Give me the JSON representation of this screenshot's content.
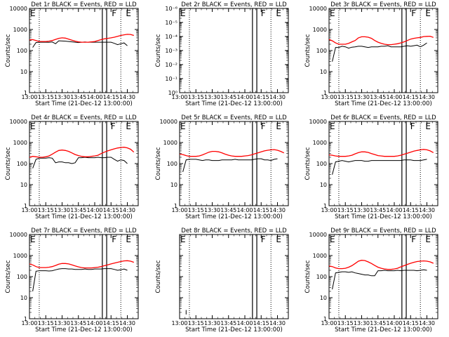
{
  "x_ticks": [
    "13:00",
    "13:15",
    "13:30",
    "13:45",
    "14:00",
    "14:15",
    "14:30"
  ],
  "xlabel": "Start Time (21-Dec-12 13:00:00)",
  "ylabel": "Counts/sec",
  "colors": {
    "events": "#000000",
    "lld": "#ff0000"
  },
  "chart_data": [
    {
      "type": "line",
      "title": "Det 1r BLACK = Events, RED = LLD",
      "x": [
        "13:00",
        "13:03",
        "13:06",
        "13:09",
        "13:12",
        "13:15",
        "13:18",
        "13:21",
        "13:24",
        "13:27",
        "13:30",
        "13:33",
        "13:36",
        "13:39",
        "13:42",
        "13:45",
        "13:48",
        "13:51",
        "13:54",
        "13:57",
        "14:00",
        "14:03",
        "14:06",
        "14:09",
        "14:12",
        "14:15",
        "14:18",
        "14:21",
        "14:24",
        "14:27",
        "14:30",
        "14:33",
        "14:36"
      ],
      "y_ticks": [
        "1",
        "10",
        "100",
        "1000",
        "10000"
      ],
      "ylim": [
        1,
        10000
      ],
      "log": true,
      "markers": [
        {
          "x": "13:00",
          "label": "E"
        },
        {
          "x": "14:15",
          "label": "F"
        },
        {
          "x": "14:28",
          "label": "E"
        }
      ],
      "dotted_x": [
        "13:09",
        "14:24"
      ],
      "gap": [
        "14:07",
        "14:11"
      ],
      "series": [
        {
          "color": "events",
          "values": [
            null,
            140,
            240,
            250,
            250,
            250,
            245,
            255,
            210,
            290,
            285,
            280,
            270,
            260,
            250,
            240,
            250,
            255,
            250,
            250,
            250,
            250,
            250,
            250,
            250,
            250,
            220,
            190,
            210,
            230,
            170,
            null,
            null
          ]
        },
        {
          "color": "lld",
          "values": [
            320,
            330,
            300,
            270,
            270,
            270,
            280,
            300,
            340,
            380,
            400,
            390,
            350,
            310,
            280,
            260,
            250,
            250,
            250,
            260,
            270,
            300,
            330,
            360,
            380,
            400,
            430,
            470,
            520,
            560,
            590,
            580,
            520
          ]
        }
      ]
    },
    {
      "type": "line",
      "title": "Det 2r BLACK = Events, RED = LLD",
      "x": [],
      "y_ticks": [
        "10⁰",
        "10⁻¹",
        "10⁻²",
        "10⁻³",
        "10⁻⁴",
        "10⁻⁵",
        "10⁻⁶"
      ],
      "ylim": [
        1e-06,
        1
      ],
      "log": true,
      "markers": [
        {
          "x": "13:00",
          "label": "E"
        },
        {
          "x": "14:14",
          "label": "F"
        },
        {
          "x": "14:28",
          "label": "E"
        }
      ],
      "dotted_x": [
        "13:09",
        "14:24"
      ],
      "gap": [
        "14:07",
        "14:11"
      ],
      "series": []
    },
    {
      "type": "line",
      "title": "Det 3r BLACK = Events, RED = LLD",
      "x": [
        "13:00",
        "13:03",
        "13:06",
        "13:09",
        "13:12",
        "13:15",
        "13:18",
        "13:21",
        "13:24",
        "13:27",
        "13:30",
        "13:33",
        "13:36",
        "13:39",
        "13:42",
        "13:45",
        "13:48",
        "13:51",
        "13:54",
        "13:57",
        "14:00",
        "14:03",
        "14:06",
        "14:09",
        "14:12",
        "14:15",
        "14:18",
        "14:21",
        "14:24",
        "14:27",
        "14:30",
        "14:33",
        "14:36"
      ],
      "y_ticks": [
        "1",
        "10",
        "100",
        "1000",
        "10000"
      ],
      "ylim": [
        1,
        10000
      ],
      "log": true,
      "markers": [
        {
          "x": "13:00",
          "label": "E"
        },
        {
          "x": "14:15",
          "label": "F"
        },
        {
          "x": "14:28",
          "label": "E"
        }
      ],
      "dotted_x": [
        "13:09",
        "14:24"
      ],
      "gap": [
        "14:07",
        "14:11"
      ],
      "series": [
        {
          "color": "events",
          "values": [
            null,
            30,
            140,
            140,
            160,
            150,
            130,
            145,
            150,
            160,
            160,
            150,
            140,
            150,
            150,
            150,
            160,
            160,
            170,
            150,
            150,
            150,
            150,
            160,
            170,
            160,
            170,
            180,
            150,
            180,
            230,
            null,
            null
          ]
        },
        {
          "color": "lld",
          "values": [
            340,
            290,
            230,
            200,
            200,
            200,
            220,
            260,
            300,
            400,
            450,
            450,
            430,
            380,
            300,
            250,
            220,
            200,
            190,
            190,
            200,
            210,
            230,
            260,
            300,
            350,
            380,
            400,
            420,
            460,
            470,
            480,
            420
          ]
        }
      ]
    },
    {
      "type": "line",
      "title": "Det 4r BLACK = Events, RED = LLD",
      "x": [
        "13:00",
        "13:03",
        "13:06",
        "13:09",
        "13:12",
        "13:15",
        "13:18",
        "13:21",
        "13:24",
        "13:27",
        "13:30",
        "13:33",
        "13:36",
        "13:39",
        "13:42",
        "13:45",
        "13:48",
        "13:51",
        "13:54",
        "13:57",
        "14:00",
        "14:03",
        "14:06",
        "14:09",
        "14:12",
        "14:15",
        "14:18",
        "14:21",
        "14:24",
        "14:27",
        "14:30",
        "14:33",
        "14:36"
      ],
      "y_ticks": [
        "1",
        "10",
        "100",
        "1000",
        "10000"
      ],
      "ylim": [
        1,
        10000
      ],
      "log": true,
      "markers": [
        {
          "x": "13:00",
          "label": "E"
        },
        {
          "x": "14:14",
          "label": "F"
        },
        {
          "x": "14:28",
          "label": "E"
        }
      ],
      "dotted_x": [
        "13:09",
        "14:24"
      ],
      "gap": [
        "14:07",
        "14:11"
      ],
      "series": [
        {
          "color": "events",
          "values": [
            null,
            60,
            160,
            180,
            180,
            180,
            190,
            180,
            110,
            120,
            120,
            110,
            110,
            100,
            110,
            190,
            190,
            200,
            190,
            190,
            190,
            200,
            190,
            190,
            200,
            200,
            160,
            130,
            150,
            140,
            100,
            null,
            null
          ]
        },
        {
          "color": "lld",
          "values": [
            200,
            220,
            210,
            200,
            200,
            210,
            230,
            280,
            350,
            420,
            440,
            420,
            380,
            320,
            270,
            240,
            220,
            210,
            210,
            220,
            230,
            250,
            300,
            350,
            400,
            450,
            500,
            550,
            580,
            600,
            560,
            480,
            350
          ]
        }
      ]
    },
    {
      "type": "line",
      "title": "Det 5r BLACK = Events, RED = LLD",
      "x": [
        "13:00",
        "13:03",
        "13:06",
        "13:09",
        "13:12",
        "13:15",
        "13:18",
        "13:21",
        "13:24",
        "13:27",
        "13:30",
        "13:33",
        "13:36",
        "13:39",
        "13:42",
        "13:45",
        "13:48",
        "13:51",
        "13:54",
        "13:57",
        "14:00",
        "14:03",
        "14:06",
        "14:09",
        "14:12",
        "14:15",
        "14:18",
        "14:21",
        "14:24",
        "14:27",
        "14:30",
        "14:33",
        "14:36"
      ],
      "y_ticks": [
        "1",
        "10",
        "100",
        "1000",
        "10000"
      ],
      "ylim": [
        1,
        10000
      ],
      "log": true,
      "markers": [
        {
          "x": "13:00",
          "label": "E"
        },
        {
          "x": "14:14",
          "label": "F"
        },
        {
          "x": "14:28",
          "label": "E"
        }
      ],
      "dotted_x": [
        "13:09",
        "14:24"
      ],
      "gap": [
        "14:07",
        "14:11"
      ],
      "series": [
        {
          "color": "events",
          "values": [
            null,
            40,
            150,
            160,
            160,
            160,
            150,
            140,
            150,
            150,
            140,
            140,
            140,
            150,
            150,
            150,
            150,
            160,
            150,
            150,
            150,
            150,
            150,
            160,
            170,
            170,
            150,
            150,
            140,
            160,
            170,
            null,
            null
          ]
        },
        {
          "color": "lld",
          "values": [
            280,
            270,
            240,
            220,
            220,
            220,
            230,
            260,
            300,
            350,
            380,
            380,
            360,
            320,
            280,
            250,
            230,
            220,
            220,
            220,
            230,
            240,
            260,
            290,
            320,
            360,
            400,
            430,
            450,
            460,
            430,
            380,
            320
          ]
        }
      ]
    },
    {
      "type": "line",
      "title": "Det 6r BLACK = Events, RED = LLD",
      "x": [
        "13:00",
        "13:03",
        "13:06",
        "13:09",
        "13:12",
        "13:15",
        "13:18",
        "13:21",
        "13:24",
        "13:27",
        "13:30",
        "13:33",
        "13:36",
        "13:39",
        "13:42",
        "13:45",
        "13:48",
        "13:51",
        "13:54",
        "13:57",
        "14:00",
        "14:03",
        "14:06",
        "14:09",
        "14:12",
        "14:15",
        "14:18",
        "14:21",
        "14:24",
        "14:27",
        "14:30",
        "14:33",
        "14:36"
      ],
      "y_ticks": [
        "1",
        "10",
        "100",
        "1000",
        "10000"
      ],
      "ylim": [
        1,
        10000
      ],
      "log": true,
      "markers": [
        {
          "x": "13:00",
          "label": "E"
        },
        {
          "x": "14:14",
          "label": "F"
        },
        {
          "x": "14:28",
          "label": "E"
        }
      ],
      "dotted_x": [
        "13:09",
        "14:24"
      ],
      "gap": [
        "14:07",
        "14:11"
      ],
      "series": [
        {
          "color": "events",
          "values": [
            null,
            30,
            120,
            130,
            140,
            130,
            120,
            130,
            140,
            140,
            140,
            130,
            130,
            140,
            140,
            140,
            140,
            140,
            140,
            140,
            140,
            140,
            140,
            150,
            150,
            150,
            140,
            140,
            140,
            150,
            160,
            null,
            null
          ]
        },
        {
          "color": "lld",
          "values": [
            260,
            250,
            230,
            220,
            220,
            220,
            230,
            250,
            290,
            330,
            360,
            360,
            340,
            300,
            270,
            240,
            230,
            220,
            220,
            220,
            220,
            230,
            250,
            280,
            310,
            350,
            390,
            420,
            450,
            470,
            450,
            400,
            330
          ]
        }
      ]
    },
    {
      "type": "line",
      "title": "Det 7r BLACK = Events, RED = LLD",
      "x": [
        "13:00",
        "13:03",
        "13:06",
        "13:09",
        "13:12",
        "13:15",
        "13:18",
        "13:21",
        "13:24",
        "13:27",
        "13:30",
        "13:33",
        "13:36",
        "13:39",
        "13:42",
        "13:45",
        "13:48",
        "13:51",
        "13:54",
        "13:57",
        "14:00",
        "14:03",
        "14:06",
        "14:09",
        "14:12",
        "14:15",
        "14:18",
        "14:21",
        "14:24",
        "14:27",
        "14:30",
        "14:33",
        "14:36"
      ],
      "y_ticks": [
        "1",
        "10",
        "100",
        "1000",
        "10000"
      ],
      "ylim": [
        1,
        10000
      ],
      "log": true,
      "markers": [
        {
          "x": "13:00",
          "label": "E"
        },
        {
          "x": "14:15",
          "label": "F"
        },
        {
          "x": "14:28",
          "label": "E"
        }
      ],
      "dotted_x": [
        "13:09",
        "14:24"
      ],
      "gap": [
        "14:07",
        "14:11"
      ],
      "series": [
        {
          "color": "events",
          "values": [
            null,
            20,
            180,
            190,
            190,
            190,
            185,
            190,
            210,
            230,
            240,
            240,
            230,
            230,
            220,
            220,
            220,
            230,
            220,
            220,
            230,
            230,
            230,
            240,
            240,
            240,
            220,
            200,
            210,
            230,
            200,
            null,
            null
          ]
        },
        {
          "color": "lld",
          "values": [
            400,
            360,
            300,
            270,
            270,
            270,
            280,
            300,
            340,
            390,
            420,
            420,
            400,
            360,
            320,
            290,
            270,
            260,
            260,
            260,
            270,
            280,
            300,
            330,
            360,
            400,
            440,
            480,
            520,
            560,
            570,
            540,
            480
          ]
        }
      ]
    },
    {
      "type": "line",
      "title": "Det 8r BLACK = Events, RED = LLD",
      "x": [
        "13:06",
        "13:06"
      ],
      "y_ticks": [],
      "ylim": [
        1,
        10000
      ],
      "log": true,
      "markers": [
        {
          "x": "13:00",
          "label": "E"
        },
        {
          "x": "14:14",
          "label": "F"
        },
        {
          "x": "14:28",
          "label": "E"
        }
      ],
      "dotted_x": [
        "13:09",
        "14:24"
      ],
      "gap": [
        "14:07",
        "14:11"
      ],
      "series": [
        {
          "color": "events",
          "values": [
            1.6,
            2.6
          ]
        }
      ]
    },
    {
      "type": "line",
      "title": "Det 9r BLACK = Events, RED = LLD",
      "x": [
        "13:00",
        "13:03",
        "13:06",
        "13:09",
        "13:12",
        "13:15",
        "13:18",
        "13:21",
        "13:24",
        "13:27",
        "13:30",
        "13:33",
        "13:36",
        "13:39",
        "13:42",
        "13:45",
        "13:48",
        "13:51",
        "13:54",
        "13:57",
        "14:00",
        "14:03",
        "14:06",
        "14:09",
        "14:12",
        "14:15",
        "14:18",
        "14:21",
        "14:24",
        "14:27",
        "14:30",
        "14:33",
        "14:36"
      ],
      "y_ticks": [
        "1",
        "10",
        "100",
        "1000",
        "10000"
      ],
      "ylim": [
        1,
        10000
      ],
      "log": true,
      "markers": [
        {
          "x": "13:00",
          "label": "E"
        },
        {
          "x": "14:15",
          "label": "F"
        },
        {
          "x": "14:28",
          "label": "E"
        }
      ],
      "dotted_x": [
        "13:09",
        "14:24"
      ],
      "gap": [
        "14:07",
        "14:11"
      ],
      "series": [
        {
          "color": "events",
          "values": [
            null,
            25,
            150,
            160,
            170,
            170,
            160,
            170,
            150,
            140,
            130,
            120,
            120,
            110,
            110,
            190,
            190,
            200,
            190,
            190,
            190,
            200,
            190,
            200,
            200,
            200,
            200,
            190,
            200,
            210,
            200,
            null,
            null
          ]
        },
        {
          "color": "lld",
          "values": [
            320,
            300,
            260,
            240,
            240,
            250,
            280,
            330,
            420,
            540,
            600,
            580,
            500,
            420,
            340,
            280,
            250,
            230,
            220,
            220,
            230,
            250,
            290,
            330,
            380,
            430,
            480,
            520,
            540,
            560,
            540,
            500,
            430
          ]
        }
      ]
    }
  ]
}
